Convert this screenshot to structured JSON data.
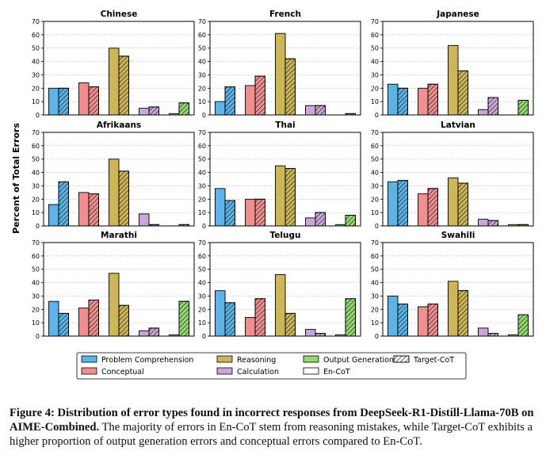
{
  "chart_data": {
    "type": "bar",
    "ylabel": "Percent of Total Errors",
    "ylim": [
      0,
      70
    ],
    "yticks": [
      0,
      10,
      20,
      30,
      40,
      50,
      60,
      70
    ],
    "grid": "horizontal dashed",
    "category_labels": [
      "Problem Comprehension",
      "Conceptual",
      "Reasoning",
      "Calculation",
      "Output Generation"
    ],
    "colors": {
      "Problem Comprehension": "#5db3e6",
      "Conceptual": "#ef8f8f",
      "Reasoning": "#cdb65a",
      "Calculation": "#c9a8d9",
      "Output Generation": "#93d873"
    },
    "series_names": [
      "En-CoT",
      "Target-CoT"
    ],
    "legend": {
      "position": "bottom-center",
      "items": [
        "Problem Comprehension",
        "Conceptual",
        "Reasoning",
        "Calculation",
        "Output Generation",
        "En-CoT",
        "Target-CoT"
      ]
    },
    "panels": [
      {
        "title": "Chinese",
        "en": [
          20,
          24,
          50,
          5,
          1
        ],
        "target": [
          20,
          21,
          44,
          6,
          9
        ]
      },
      {
        "title": "French",
        "en": [
          10,
          22,
          61,
          7,
          0
        ],
        "target": [
          21,
          29,
          42,
          7,
          1
        ]
      },
      {
        "title": "Japanese",
        "en": [
          23,
          20,
          52,
          4,
          0
        ],
        "target": [
          20,
          23,
          33,
          13,
          11
        ]
      },
      {
        "title": "Afrikaans",
        "en": [
          16,
          25,
          50,
          9,
          0
        ],
        "target": [
          33,
          24,
          41,
          1,
          1
        ]
      },
      {
        "title": "Thai",
        "en": [
          28,
          20,
          45,
          6,
          1
        ],
        "target": [
          19,
          20,
          43,
          10,
          8
        ]
      },
      {
        "title": "Latvian",
        "en": [
          33,
          24,
          36,
          5,
          1
        ],
        "target": [
          34,
          28,
          32,
          4,
          1
        ]
      },
      {
        "title": "Marathi",
        "en": [
          26,
          21,
          47,
          4,
          1
        ],
        "target": [
          17,
          27,
          23,
          6,
          26
        ]
      },
      {
        "title": "Telugu",
        "en": [
          34,
          14,
          46,
          5,
          1
        ],
        "target": [
          25,
          28,
          17,
          2,
          28
        ]
      },
      {
        "title": "Swahili",
        "en": [
          30,
          22,
          41,
          6,
          1
        ],
        "target": [
          24,
          24,
          34,
          2,
          16
        ]
      }
    ]
  },
  "caption": {
    "label": "Figure 4: ",
    "bold": "Distribution of error types found in incorrect responses from DeepSeek-R1-Distill-Llama-70B on AIME-Combined.",
    "text": " The majority of errors in En-CoT stem from reasoning mistakes, while Target-CoT exhibits a higher proportion of output generation errors and conceptual errors compared to En-CoT."
  }
}
